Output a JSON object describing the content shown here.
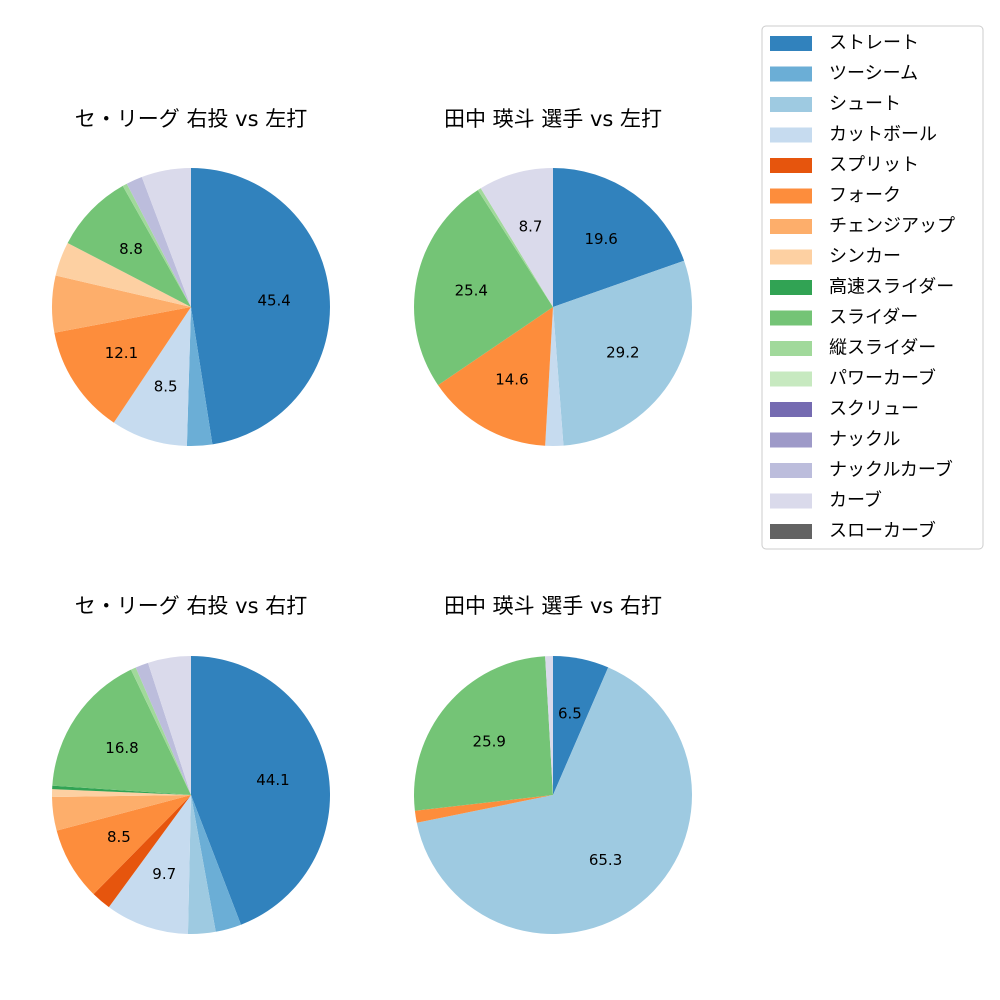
{
  "pitch_types": [
    {
      "name": "ストレート",
      "color": "#3182bd"
    },
    {
      "name": "ツーシーム",
      "color": "#6baed6"
    },
    {
      "name": "シュート",
      "color": "#9ecae1"
    },
    {
      "name": "カットボール",
      "color": "#c6dbef"
    },
    {
      "name": "スプリット",
      "color": "#e6550d"
    },
    {
      "name": "フォーク",
      "color": "#fd8d3c"
    },
    {
      "name": "チェンジアップ",
      "color": "#fdae6b"
    },
    {
      "name": "シンカー",
      "color": "#fdd0a2"
    },
    {
      "name": "高速スライダー",
      "color": "#31a354"
    },
    {
      "name": "スライダー",
      "color": "#74c476"
    },
    {
      "name": "縦スライダー",
      "color": "#a1d99b"
    },
    {
      "name": "パワーカーブ",
      "color": "#c7e9c0"
    },
    {
      "name": "スクリュー",
      "color": "#756bb1"
    },
    {
      "name": "ナックル",
      "color": "#9e9ac8"
    },
    {
      "name": "ナックルカーブ",
      "color": "#bcbddc"
    },
    {
      "name": "カーブ",
      "color": "#dadaeb"
    },
    {
      "name": "スローカーブ",
      "color": "#636363"
    }
  ],
  "chart_data": [
    {
      "type": "pie",
      "title": "セ・リーグ 右投 vs 左打",
      "values": [
        45.4,
        2.8,
        0,
        8.5,
        0,
        12.1,
        6.3,
        3.8,
        0,
        8.8,
        0.5,
        0,
        0,
        0,
        1.8,
        5.5,
        0
      ],
      "labels": [
        "45.4",
        "",
        "",
        "8.5",
        "",
        "12.1",
        "",
        "",
        "",
        "8.8",
        "",
        "",
        "",
        "",
        "",
        "",
        ""
      ]
    },
    {
      "type": "pie",
      "title": "田中 瑛斗 選手 vs 左打",
      "values": [
        19.6,
        0,
        29.2,
        2.1,
        0,
        14.6,
        0,
        0,
        0,
        25.4,
        0.4,
        0,
        0,
        0,
        0,
        8.7,
        0
      ],
      "labels": [
        "19.6",
        "",
        "29.2",
        "",
        "",
        "14.6",
        "",
        "",
        "",
        "25.4",
        "",
        "",
        "",
        "",
        "",
        "8.7",
        ""
      ]
    },
    {
      "type": "pie",
      "title": "セ・リーグ 右投 vs 右打",
      "values": [
        44.1,
        3.0,
        3.2,
        9.7,
        2.3,
        8.5,
        3.9,
        0.9,
        0.4,
        16.8,
        0.6,
        0,
        0,
        0,
        1.5,
        5.0,
        0
      ],
      "labels": [
        "44.1",
        "",
        "",
        "9.7",
        "",
        "8.5",
        "",
        "",
        "",
        "16.8",
        "",
        "",
        "",
        "",
        "",
        "",
        ""
      ]
    },
    {
      "type": "pie",
      "title": "田中 瑛斗 選手 vs 右打",
      "values": [
        6.5,
        0,
        65.3,
        0,
        0,
        1.4,
        0,
        0,
        0,
        25.9,
        0,
        0,
        0,
        0,
        0,
        0.9,
        0
      ],
      "labels": [
        "6.5",
        "",
        "65.3",
        "",
        "",
        "",
        "",
        "",
        "",
        "25.9",
        "",
        "",
        "",
        "",
        "",
        "",
        ""
      ]
    }
  ]
}
